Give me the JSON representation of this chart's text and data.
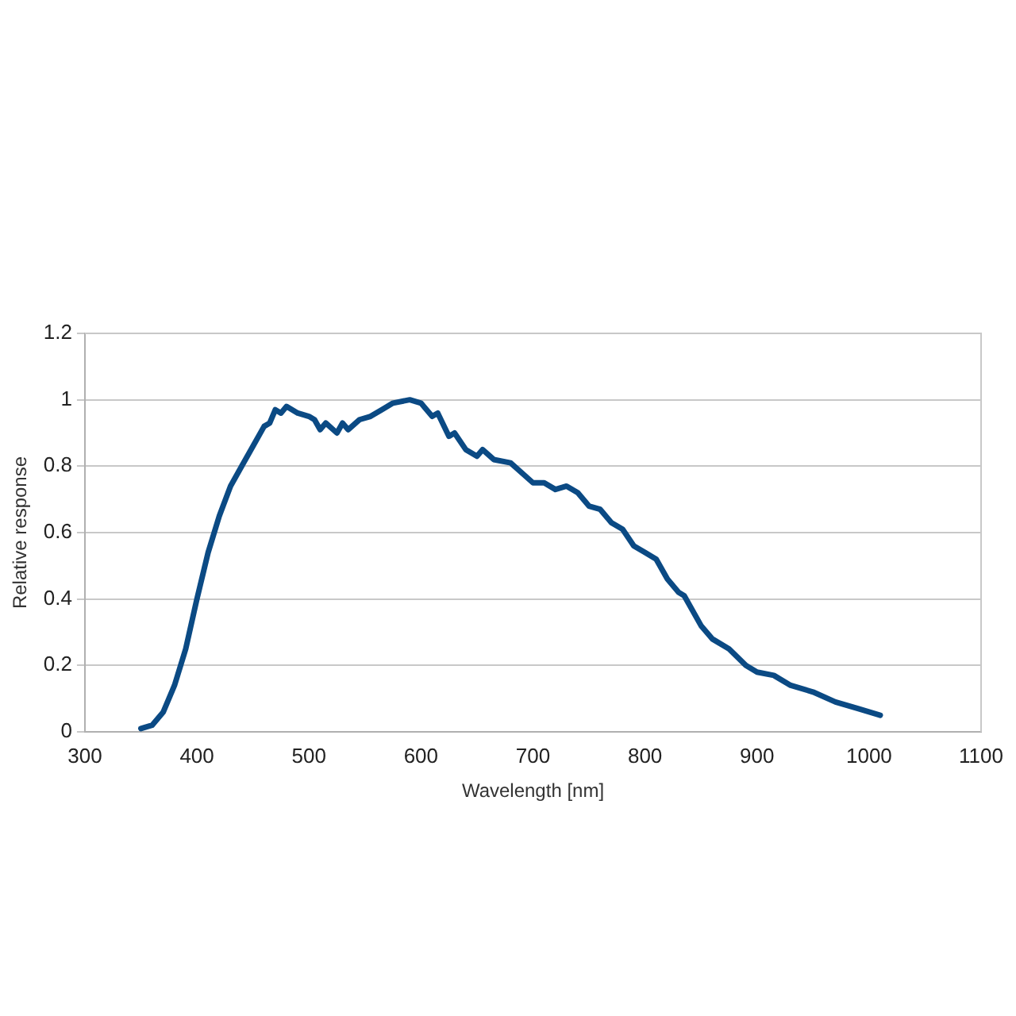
{
  "chart_data": {
    "type": "line",
    "xlabel": "Wavelength [nm]",
    "ylabel": "Relative response",
    "xlim": [
      300,
      1100
    ],
    "xticks": [
      300,
      400,
      500,
      600,
      700,
      800,
      900,
      1000,
      1100
    ],
    "ylim": [
      0,
      1.2
    ],
    "yticks": [
      0,
      0.2,
      0.4,
      0.6,
      0.8,
      1,
      1.2
    ],
    "grid": "y",
    "legend": false,
    "marker": "none",
    "line_style": "solid",
    "series": [
      {
        "color": "#0b4a84",
        "x": [
          350,
          360,
          370,
          380,
          390,
          400,
          410,
          420,
          430,
          440,
          450,
          460,
          465,
          470,
          475,
          480,
          490,
          500,
          505,
          510,
          515,
          525,
          530,
          535,
          545,
          555,
          565,
          575,
          590,
          600,
          610,
          615,
          625,
          630,
          640,
          650,
          655,
          665,
          680,
          700,
          710,
          720,
          730,
          740,
          750,
          760,
          770,
          780,
          790,
          800,
          810,
          820,
          830,
          835,
          850,
          860,
          875,
          890,
          900,
          915,
          930,
          950,
          970,
          990,
          1010
        ],
        "values": [
          0.01,
          0.02,
          0.06,
          0.14,
          0.25,
          0.4,
          0.54,
          0.65,
          0.74,
          0.8,
          0.86,
          0.92,
          0.93,
          0.97,
          0.96,
          0.98,
          0.96,
          0.95,
          0.94,
          0.91,
          0.93,
          0.9,
          0.93,
          0.91,
          0.94,
          0.95,
          0.97,
          0.99,
          1,
          0.99,
          0.95,
          0.96,
          0.89,
          0.9,
          0.85,
          0.83,
          0.85,
          0.82,
          0.81,
          0.75,
          0.75,
          0.73,
          0.74,
          0.72,
          0.68,
          0.67,
          0.63,
          0.61,
          0.56,
          0.54,
          0.52,
          0.46,
          0.42,
          0.41,
          0.32,
          0.28,
          0.25,
          0.2,
          0.18,
          0.17,
          0.14,
          0.12,
          0.09,
          0.07,
          0.05
        ]
      }
    ]
  }
}
